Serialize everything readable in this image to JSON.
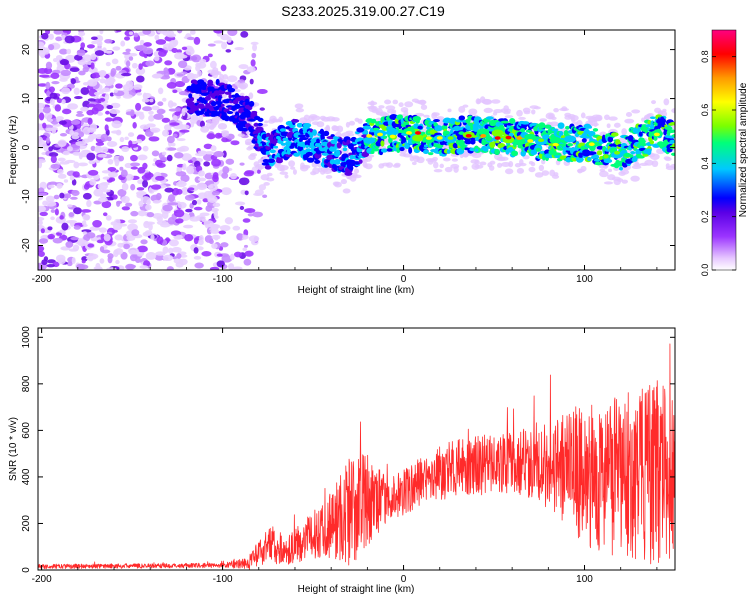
{
  "title": "S233.2025.319.00.27.C19",
  "chart_data": [
    {
      "type": "heatmap",
      "xlabel": "Height of straight line (km)",
      "ylabel": "Frequency (Hz)",
      "xlim": [
        -202,
        150
      ],
      "ylim": [
        -25,
        24
      ],
      "xticks": [
        -200,
        -100,
        0,
        100
      ],
      "yticks": [
        -20,
        -10,
        0,
        10,
        20
      ],
      "colorbar": {
        "label": "Normalized spectral amplitude",
        "range": [
          0,
          0.9
        ],
        "ticks": [
          0.0,
          0.2,
          0.4,
          0.6,
          0.8
        ],
        "colors": [
          "#ffffff",
          "#e6c6ff",
          "#9b34ff",
          "#5a00e6",
          "#0000ff",
          "#00c8ff",
          "#00ff7a",
          "#7bff00",
          "#ffff00",
          "#ff9a00",
          "#ff0000",
          "#ff0080"
        ]
      },
      "description_features": {
        "noise_region_x": [
          -202,
          -85
        ],
        "signal_ridge": [
          {
            "x": -120,
            "y": 10
          },
          {
            "x": -100,
            "y": 10
          },
          {
            "x": -85,
            "y": 6
          },
          {
            "x": -75,
            "y": -1
          },
          {
            "x": -60,
            "y": 2
          },
          {
            "x": -45,
            "y": 0
          },
          {
            "x": -30,
            "y": -2
          },
          {
            "x": -20,
            "y": 2
          },
          {
            "x": 0,
            "y": 3
          },
          {
            "x": 20,
            "y": 2
          },
          {
            "x": 40,
            "y": 3
          },
          {
            "x": 60,
            "y": 2
          },
          {
            "x": 80,
            "y": 1
          },
          {
            "x": 100,
            "y": 1
          },
          {
            "x": 120,
            "y": -1
          },
          {
            "x": 140,
            "y": 3
          },
          {
            "x": 150,
            "y": 2
          }
        ]
      }
    },
    {
      "type": "line",
      "xlabel": "Height of straight line (km)",
      "ylabel": "SNR (10 * v/v)",
      "xlim": [
        -202,
        150
      ],
      "ylim": [
        0,
        1040
      ],
      "xticks": [
        -200,
        -100,
        0,
        100
      ],
      "yticks": [
        0,
        200,
        400,
        600,
        800,
        1000
      ],
      "color": "#ff2a2a",
      "envelope": {
        "x": [
          -202,
          -100,
          -85,
          -80,
          -75,
          -65,
          -50,
          -40,
          -30,
          -20,
          -10,
          0,
          10,
          20,
          40,
          60,
          80,
          100,
          120,
          140,
          150
        ],
        "mean": [
          15,
          20,
          30,
          70,
          120,
          80,
          150,
          200,
          250,
          300,
          300,
          330,
          380,
          420,
          450,
          460,
          460,
          400,
          400,
          420,
          400
        ],
        "amp": [
          10,
          10,
          30,
          60,
          90,
          60,
          100,
          150,
          250,
          200,
          100,
          100,
          110,
          120,
          130,
          130,
          200,
          300,
          350,
          400,
          350
        ]
      }
    }
  ]
}
